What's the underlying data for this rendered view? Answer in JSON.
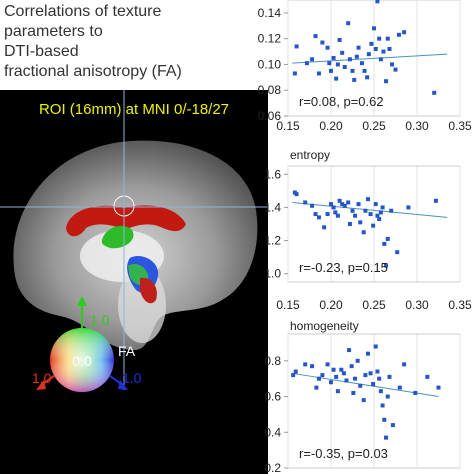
{
  "heading": {
    "lines": [
      "Correlations of texture",
      "parameters to",
      "DTI-based",
      "fractional anisotropy (FA)"
    ]
  },
  "roi_label": "ROI (16mm) at MNI 0/-18/27",
  "colorwheel": {
    "center_label": "0.0",
    "fa_label": "FA",
    "up_label": "1.0",
    "left_label": "1.0",
    "right_label": "1.0",
    "colors": {
      "up": "#2ecc1a",
      "left": "#e03020",
      "right": "#2030d8",
      "label_yellow": "#f0f000"
    }
  },
  "colors": {
    "points": "#2457c5",
    "trend": "#4a8fc7",
    "frame": "#cccccc"
  },
  "chart_data": [
    {
      "type": "scatter",
      "title": "",
      "xlim": [
        0.15,
        0.35
      ],
      "xticks": [
        "0.15",
        "0.20",
        "0.25",
        "0.30",
        "0.35"
      ],
      "ylim": [
        0.06,
        0.15
      ],
      "yticks": [
        "0.06",
        "0.08",
        "0.10",
        "0.12",
        "0.14"
      ],
      "ytick_values": [
        0.06,
        0.08,
        0.1,
        0.12,
        0.14
      ],
      "annotation": "r=0.08, p=0.62",
      "trend": [
        [
          0.155,
          0.101
        ],
        [
          0.335,
          0.108
        ]
      ],
      "points": [
        [
          0.158,
          0.093
        ],
        [
          0.16,
          0.114
        ],
        [
          0.172,
          0.101
        ],
        [
          0.178,
          0.104
        ],
        [
          0.182,
          0.122
        ],
        [
          0.186,
          0.093
        ],
        [
          0.19,
          0.117
        ],
        [
          0.196,
          0.113
        ],
        [
          0.198,
          0.101
        ],
        [
          0.2,
          0.095
        ],
        [
          0.203,
          0.105
        ],
        [
          0.206,
          0.089
        ],
        [
          0.208,
          0.1
        ],
        [
          0.21,
          0.119
        ],
        [
          0.213,
          0.109
        ],
        [
          0.216,
          0.098
        ],
        [
          0.22,
          0.132
        ],
        [
          0.222,
          0.104
        ],
        [
          0.225,
          0.095
        ],
        [
          0.227,
          0.088
        ],
        [
          0.23,
          0.106
        ],
        [
          0.232,
          0.113
        ],
        [
          0.236,
          0.101
        ],
        [
          0.239,
          0.095
        ],
        [
          0.242,
          0.09
        ],
        [
          0.244,
          0.108
        ],
        [
          0.247,
          0.116
        ],
        [
          0.25,
          0.128
        ],
        [
          0.252,
          0.112
        ],
        [
          0.254,
          0.149
        ],
        [
          0.256,
          0.12
        ],
        [
          0.258,
          0.104
        ],
        [
          0.261,
          0.11
        ],
        [
          0.264,
          0.087
        ],
        [
          0.266,
          0.12
        ],
        [
          0.268,
          0.112
        ],
        [
          0.271,
          0.1
        ],
        [
          0.275,
          0.096
        ],
        [
          0.279,
          0.123
        ],
        [
          0.285,
          0.125
        ],
        [
          0.32,
          0.078
        ]
      ]
    },
    {
      "type": "scatter",
      "title": "entropy",
      "xlim": [
        0.15,
        0.35
      ],
      "xticks": [
        "0.15",
        "0.20",
        "0.25",
        "0.30",
        "0.35"
      ],
      "ylim": [
        0.95,
        1.65
      ],
      "yticks": [
        "1.0",
        "1.2",
        "1.4",
        "1.6"
      ],
      "ytick_values": [
        1.0,
        1.2,
        1.4,
        1.6
      ],
      "annotation": "r=-0.23, p=0.15",
      "trend": [
        [
          0.155,
          1.43
        ],
        [
          0.335,
          1.34
        ]
      ],
      "points": [
        [
          0.158,
          1.49
        ],
        [
          0.16,
          1.48
        ],
        [
          0.17,
          1.43
        ],
        [
          0.178,
          1.41
        ],
        [
          0.182,
          1.36
        ],
        [
          0.186,
          1.34
        ],
        [
          0.192,
          1.28
        ],
        [
          0.196,
          1.36
        ],
        [
          0.2,
          1.42
        ],
        [
          0.203,
          1.4
        ],
        [
          0.205,
          1.37
        ],
        [
          0.208,
          1.35
        ],
        [
          0.21,
          1.44
        ],
        [
          0.213,
          1.42
        ],
        [
          0.216,
          1.41
        ],
        [
          0.22,
          1.43
        ],
        [
          0.222,
          1.3
        ],
        [
          0.225,
          1.38
        ],
        [
          0.228,
          1.35
        ],
        [
          0.232,
          1.42
        ],
        [
          0.234,
          1.31
        ],
        [
          0.238,
          1.25
        ],
        [
          0.24,
          1.38
        ],
        [
          0.243,
          1.45
        ],
        [
          0.246,
          1.36
        ],
        [
          0.249,
          1.29
        ],
        [
          0.252,
          1.42
        ],
        [
          0.254,
          1.35
        ],
        [
          0.256,
          1.33
        ],
        [
          0.258,
          1.37
        ],
        [
          0.26,
          1.4
        ],
        [
          0.262,
          1.18
        ],
        [
          0.264,
          1.05
        ],
        [
          0.266,
          1.21
        ],
        [
          0.27,
          1.38
        ],
        [
          0.277,
          1.13
        ],
        [
          0.29,
          1.4
        ],
        [
          0.322,
          1.44
        ]
      ]
    },
    {
      "type": "scatter",
      "title": "homogeneity",
      "xlim": [
        0.15,
        0.35
      ],
      "xticks": [],
      "ylim": [
        0.2,
        0.95
      ],
      "yticks": [
        "0.2",
        "0.4",
        "0.6",
        "0.8"
      ],
      "ytick_values": [
        0.2,
        0.4,
        0.6,
        0.8
      ],
      "annotation": "r=-0.35, p=0.03",
      "trend": [
        [
          0.155,
          0.73
        ],
        [
          0.325,
          0.6
        ]
      ],
      "points": [
        [
          0.156,
          0.72
        ],
        [
          0.159,
          0.74
        ],
        [
          0.17,
          0.78
        ],
        [
          0.178,
          0.77
        ],
        [
          0.183,
          0.65
        ],
        [
          0.186,
          0.7
        ],
        [
          0.19,
          0.72
        ],
        [
          0.196,
          0.78
        ],
        [
          0.2,
          0.68
        ],
        [
          0.203,
          0.75
        ],
        [
          0.206,
          0.71
        ],
        [
          0.208,
          0.63
        ],
        [
          0.212,
          0.75
        ],
        [
          0.215,
          0.73
        ],
        [
          0.218,
          0.69
        ],
        [
          0.221,
          0.86
        ],
        [
          0.224,
          0.77
        ],
        [
          0.226,
          0.62
        ],
        [
          0.228,
          0.7
        ],
        [
          0.231,
          0.8
        ],
        [
          0.234,
          0.66
        ],
        [
          0.238,
          0.58
        ],
        [
          0.24,
          0.72
        ],
        [
          0.243,
          0.84
        ],
        [
          0.246,
          0.73
        ],
        [
          0.249,
          0.67
        ],
        [
          0.252,
          0.88
        ],
        [
          0.254,
          0.74
        ],
        [
          0.256,
          0.7
        ],
        [
          0.258,
          0.63
        ],
        [
          0.26,
          0.55
        ],
        [
          0.262,
          0.47
        ],
        [
          0.264,
          0.37
        ],
        [
          0.266,
          0.6
        ],
        [
          0.268,
          0.71
        ],
        [
          0.272,
          0.44
        ],
        [
          0.28,
          0.65
        ],
        [
          0.285,
          0.78
        ],
        [
          0.298,
          0.62
        ],
        [
          0.312,
          0.71
        ],
        [
          0.325,
          0.65
        ]
      ]
    }
  ]
}
